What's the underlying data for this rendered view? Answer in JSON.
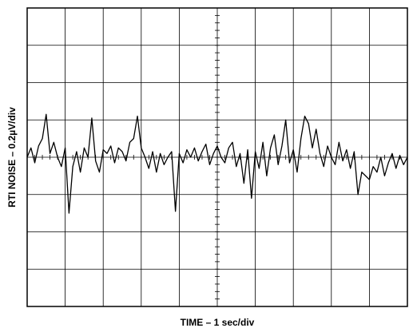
{
  "chart_data": {
    "type": "line",
    "xlabel": "TIME – 1 sec/div",
    "ylabel": "RTI NOISE – 0.2µV/div",
    "x": [
      0,
      0.1,
      0.2,
      0.3,
      0.4,
      0.5,
      0.6,
      0.7,
      0.8,
      0.9,
      1,
      1.1,
      1.2,
      1.3,
      1.4,
      1.5,
      1.6,
      1.7,
      1.8,
      1.9,
      2,
      2.1,
      2.2,
      2.3,
      2.4,
      2.5,
      2.6,
      2.7,
      2.8,
      2.9,
      3,
      3.1,
      3.2,
      3.3,
      3.4,
      3.5,
      3.6,
      3.7,
      3.8,
      3.9,
      4,
      4.1,
      4.2,
      4.3,
      4.4,
      4.5,
      4.6,
      4.7,
      4.8,
      4.9,
      5,
      5.1,
      5.2,
      5.3,
      5.4,
      5.5,
      5.6,
      5.7,
      5.8,
      5.9,
      6,
      6.1,
      6.2,
      6.3,
      6.4,
      6.5,
      6.6,
      6.7,
      6.8,
      6.9,
      7,
      7.1,
      7.2,
      7.3,
      7.4,
      7.5,
      7.6,
      7.7,
      7.8,
      7.9,
      8,
      8.1,
      8.2,
      8.3,
      8.4,
      8.5,
      8.6,
      8.7,
      8.8,
      8.9,
      9,
      9.1,
      9.2,
      9.3,
      9.4,
      9.5,
      9.6,
      9.7,
      9.8,
      9.9,
      10
    ],
    "series": [
      {
        "color": "#000000",
        "values": [
          0.0,
          0.05,
          -0.03,
          0.06,
          0.1,
          0.23,
          0.02,
          0.08,
          0.0,
          -0.05,
          0.05,
          -0.3,
          -0.05,
          0.03,
          -0.08,
          0.05,
          0.0,
          0.21,
          -0.02,
          -0.08,
          0.04,
          0.02,
          0.06,
          -0.03,
          0.05,
          0.03,
          -0.02,
          0.08,
          0.1,
          0.22,
          0.05,
          0.0,
          -0.06,
          0.03,
          -0.08,
          0.02,
          -0.04,
          0.0,
          0.03,
          -0.29,
          0.02,
          -0.03,
          0.04,
          0.0,
          0.05,
          -0.02,
          0.03,
          0.07,
          -0.04,
          0.02,
          0.06,
          0.0,
          -0.03,
          0.05,
          0.08,
          -0.05,
          0.02,
          -0.14,
          0.04,
          -0.22,
          0.03,
          -0.06,
          0.08,
          -0.1,
          0.05,
          0.12,
          -0.04,
          0.06,
          0.2,
          -0.03,
          0.04,
          -0.08,
          0.1,
          0.22,
          0.18,
          0.05,
          0.15,
          0.02,
          -0.05,
          0.06,
          0.0,
          -0.04,
          0.08,
          -0.02,
          0.04,
          -0.06,
          0.03,
          -0.2,
          -0.08,
          -0.1,
          -0.12,
          -0.05,
          -0.08,
          0.0,
          -0.1,
          -0.03,
          0.02,
          -0.06,
          0.01,
          -0.04,
          0.0
        ]
      }
    ],
    "xlim": [
      0,
      10
    ],
    "xticks": [
      0,
      1,
      2,
      3,
      4,
      5,
      6,
      7,
      8,
      9,
      10
    ],
    "ylim": [
      -0.8,
      0.8
    ],
    "yticks": [
      -0.8,
      -0.6,
      -0.4,
      -0.2,
      0,
      0.2,
      0.4,
      0.6,
      0.8
    ],
    "grid": true
  }
}
